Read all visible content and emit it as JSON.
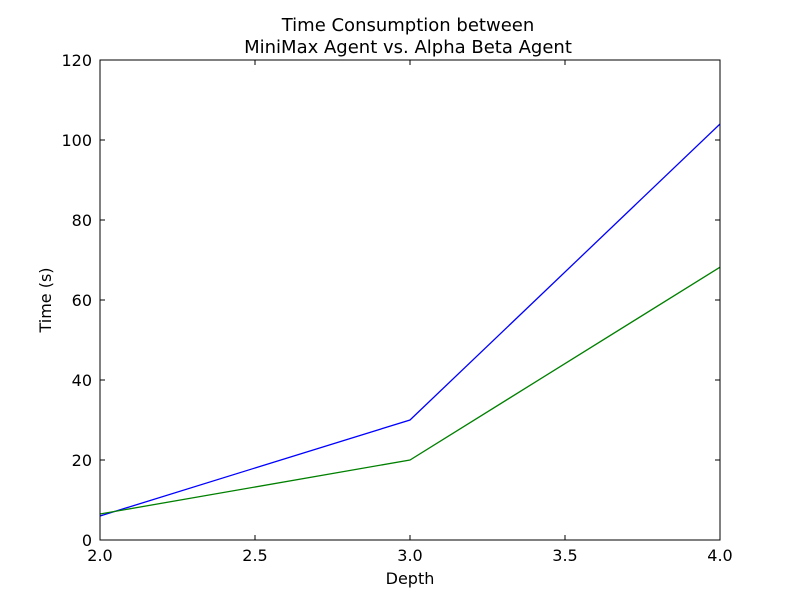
{
  "chart_data": {
    "type": "line",
    "title_line1": "Time Consumption between",
    "title_line2": "MiniMax Agent vs. Alpha Beta Agent",
    "xlabel": "Depth",
    "ylabel": "Time (s)",
    "xlim": [
      2.0,
      4.0
    ],
    "ylim": [
      0,
      120
    ],
    "x_ticks": [
      "2.0",
      "2.5",
      "3.0",
      "3.5",
      "4.0"
    ],
    "y_ticks": [
      "0",
      "20",
      "40",
      "60",
      "80",
      "100",
      "120"
    ],
    "grid": false,
    "x": [
      2.0,
      3.0,
      4.0
    ],
    "series": [
      {
        "values": [
          6.0,
          30.0,
          104.0
        ],
        "color": "#0000ff"
      },
      {
        "values": [
          6.5,
          20.0,
          68.2
        ],
        "color": "#008000"
      }
    ]
  }
}
